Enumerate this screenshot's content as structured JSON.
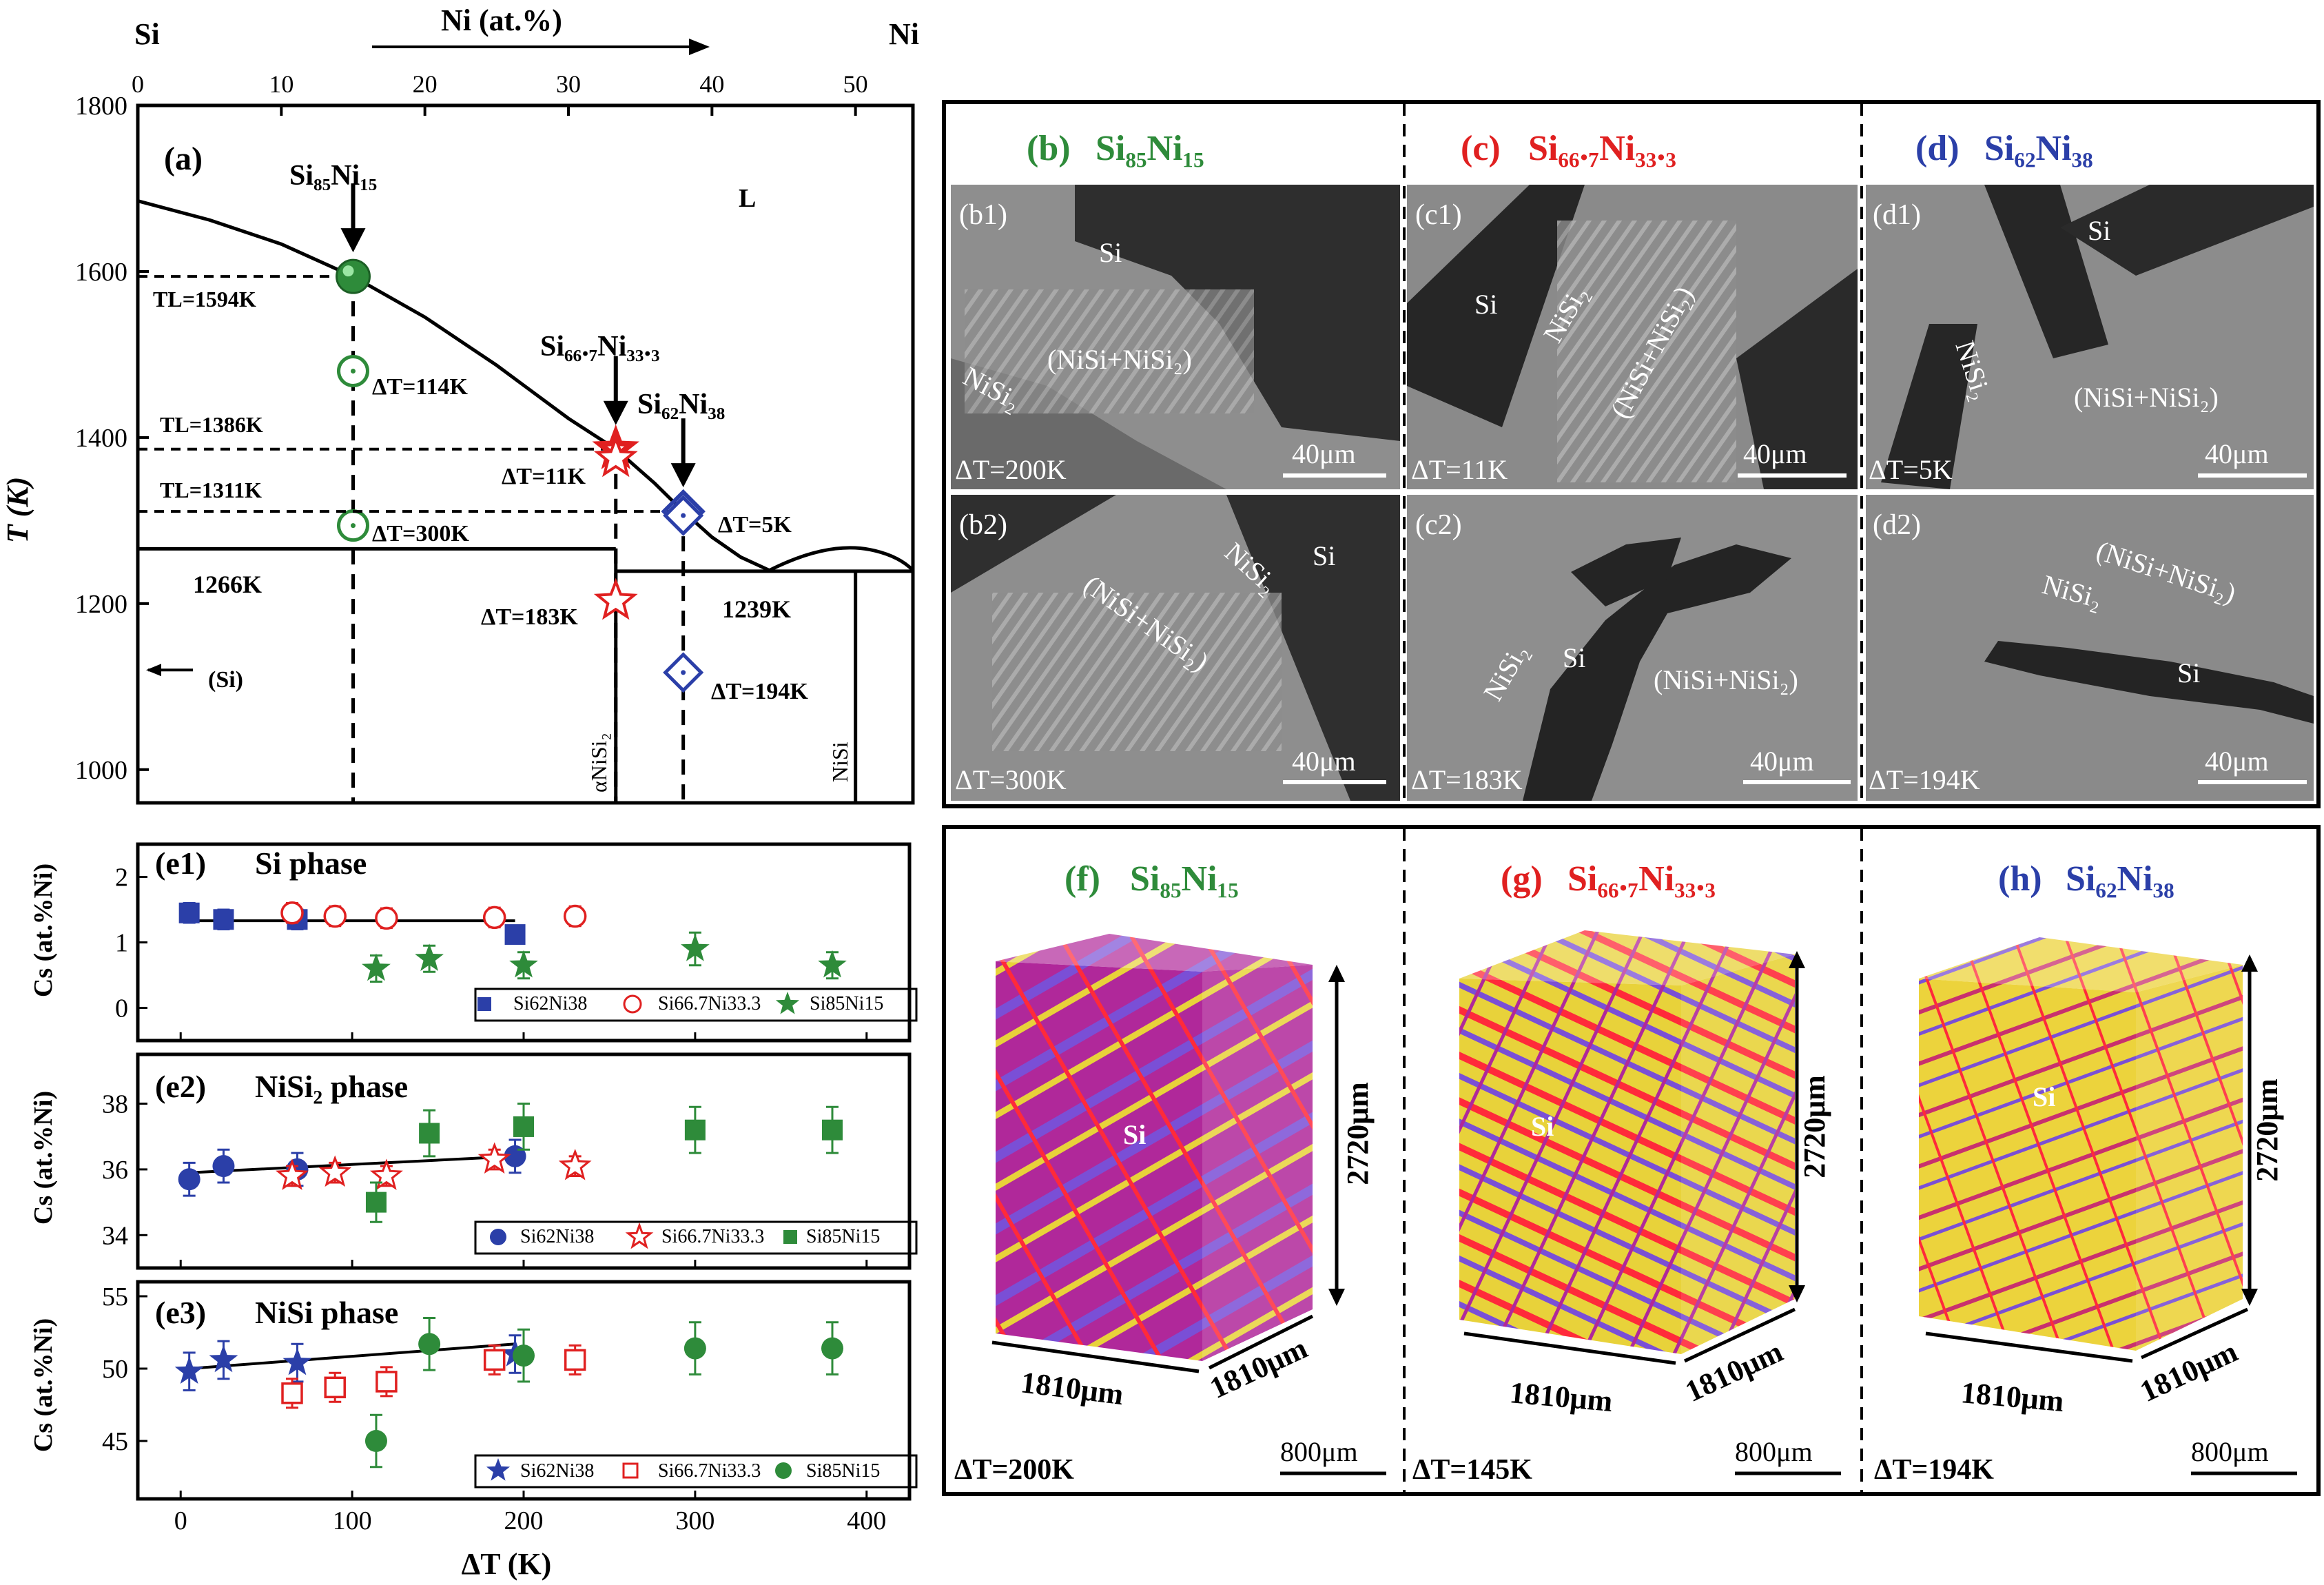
{
  "colors": {
    "green": "#2e8b3a",
    "red": "#e02020",
    "blue": "#2b3fa8",
    "black": "#000000"
  },
  "chart_data": [
    {
      "panel_label": "(a)",
      "type": "line",
      "top_axis": {
        "left_label": "Si",
        "right_label": "Ni",
        "label": "Ni (at.%)",
        "ticks": [
          0,
          10,
          20,
          30,
          40,
          50
        ]
      },
      "ylabel": "T (K)",
      "yticks": [
        1000,
        1200,
        1400,
        1600,
        1800
      ],
      "xlim": [
        0,
        54
      ],
      "ylim": [
        960,
        1800
      ],
      "liquidus": {
        "x": [
          0,
          5,
          10,
          15,
          20,
          25,
          30,
          33.3,
          36,
          38,
          40,
          42,
          44
        ],
        "y": [
          1685,
          1662,
          1633,
          1594,
          1545,
          1487,
          1423,
          1386,
          1345,
          1311,
          1280,
          1256,
          1240
        ]
      },
      "region_label": "L",
      "eutectic_lines": [
        {
          "label": "1266K",
          "y": 1266,
          "x_range": [
            0,
            33.3
          ]
        },
        {
          "label": "1239K",
          "y": 1239,
          "x_range": [
            33.3,
            54
          ]
        }
      ],
      "phase_labels": [
        "αNiSi₂",
        "NiSi"
      ],
      "si_arrow_label": "(Si)",
      "compositions": [
        {
          "name": "Si₈₅Ni₁₅",
          "color": "#2e8b3a",
          "x": 15,
          "TL": 1594,
          "TL_label": "TL=1594K",
          "undercoolings": [
            {
              "label": "ΔT=114K",
              "T": 1480
            },
            {
              "label": "ΔT=300K",
              "T": 1294
            }
          ]
        },
        {
          "name": "Si₆₆.₇Ni₃₃.₃",
          "color": "#e02020",
          "x": 33.3,
          "TL": 1386,
          "TL_label": "TL=1386K",
          "undercoolings": [
            {
              "label": "ΔT=11K",
              "T": 1375
            },
            {
              "label": "ΔT=183K",
              "T": 1203
            }
          ]
        },
        {
          "name": "Si₆₂Ni₃₈",
          "color": "#2b3fa8",
          "x": 38,
          "TL": 1311,
          "TL_label": "TL=1311K",
          "undercoolings": [
            {
              "label": "ΔT=5K",
              "T": 1306
            },
            {
              "label": "ΔT=194K",
              "T": 1117
            }
          ]
        }
      ]
    },
    {
      "panel_label": "(e1)",
      "title": "Si phase",
      "type": "scatter",
      "ylabel": "Cs (at.%Ni)",
      "ylim": [
        -0.5,
        2.5
      ],
      "yticks": [
        0,
        1,
        2
      ],
      "xlim": [
        -25,
        425
      ],
      "fit": {
        "x": [
          5,
          195
        ],
        "y": [
          1.33,
          1.33
        ],
        "color": "#000000"
      },
      "series": [
        {
          "name": "Si62Ni38",
          "marker": "square-filled",
          "color": "#2b3fa8",
          "x": [
            5,
            25,
            68,
            195
          ],
          "y": [
            1.45,
            1.35,
            1.35,
            1.12
          ],
          "err": [
            0.15,
            0.15,
            0.15,
            0.1
          ]
        },
        {
          "name": "Si66.7Ni33.3",
          "marker": "circle-open",
          "color": "#e02020",
          "x": [
            65,
            90,
            120,
            183,
            230
          ],
          "y": [
            1.45,
            1.4,
            1.37,
            1.38,
            1.4
          ],
          "err": [
            0.15,
            0.15,
            0.15,
            0.15,
            0.15
          ]
        },
        {
          "name": "Si85Ni15",
          "marker": "star-filled",
          "color": "#2e8b3a",
          "x": [
            114,
            145,
            200,
            300,
            380
          ],
          "y": [
            0.6,
            0.75,
            0.65,
            0.9,
            0.65
          ],
          "err": [
            0.2,
            0.2,
            0.2,
            0.25,
            0.2
          ]
        }
      ]
    },
    {
      "panel_label": "(e2)",
      "title": "NiSi₂ phase",
      "type": "scatter",
      "ylabel": "Cs (at.%Ni)",
      "ylim": [
        33,
        39.5
      ],
      "yticks": [
        34,
        36,
        38
      ],
      "xlim": [
        -25,
        425
      ],
      "fit": {
        "x": [
          5,
          195
        ],
        "y": [
          35.9,
          36.4
        ],
        "color": "#000000"
      },
      "series": [
        {
          "name": "Si62Ni38",
          "marker": "circle-filled",
          "color": "#2b3fa8",
          "x": [
            5,
            25,
            68,
            195
          ],
          "y": [
            35.7,
            36.1,
            36.0,
            36.4
          ],
          "err": [
            0.5,
            0.5,
            0.5,
            0.5
          ]
        },
        {
          "name": "Si66.7Ni33.3",
          "marker": "star-open",
          "color": "#e02020",
          "x": [
            65,
            90,
            120,
            183,
            230
          ],
          "y": [
            35.8,
            35.9,
            35.8,
            36.3,
            36.1
          ],
          "err": [
            0.3,
            0.3,
            0.3,
            0.3,
            0.3
          ]
        },
        {
          "name": "Si85Ni15",
          "marker": "square-filled",
          "color": "#2e8b3a",
          "x": [
            114,
            145,
            200,
            300,
            380
          ],
          "y": [
            35.0,
            37.1,
            37.3,
            37.2,
            37.2
          ],
          "err": [
            0.6,
            0.7,
            0.7,
            0.7,
            0.7
          ]
        }
      ]
    },
    {
      "panel_label": "(e3)",
      "title": "NiSi phase",
      "type": "scatter",
      "xlabel": "ΔT (K)",
      "xticks": [
        0,
        100,
        200,
        300,
        400
      ],
      "ylabel": "Cs (at.%Ni)",
      "ylim": [
        41,
        56
      ],
      "yticks": [
        45,
        50,
        55
      ],
      "xlim": [
        -25,
        425
      ],
      "fit": {
        "x": [
          5,
          195
        ],
        "y": [
          50.0,
          51.7
        ],
        "color": "#000000"
      },
      "series": [
        {
          "name": "Si62Ni38",
          "marker": "star-filled",
          "color": "#2b3fa8",
          "x": [
            5,
            25,
            68,
            195
          ],
          "y": [
            49.8,
            50.6,
            50.4,
            51.0
          ],
          "err": [
            1.3,
            1.3,
            1.3,
            1.3
          ]
        },
        {
          "name": "Si66.7Ni33.3",
          "marker": "square-open",
          "color": "#e02020",
          "x": [
            65,
            90,
            120,
            183,
            230
          ],
          "y": [
            48.3,
            48.7,
            49.1,
            50.6,
            50.6
          ],
          "err": [
            1.0,
            1.0,
            1.0,
            1.0,
            1.0
          ]
        },
        {
          "name": "Si85Ni15",
          "marker": "circle-filled",
          "color": "#2e8b3a",
          "x": [
            114,
            145,
            200,
            300,
            380
          ],
          "y": [
            45.0,
            51.7,
            50.9,
            51.4,
            51.4
          ],
          "err": [
            1.8,
            1.8,
            1.8,
            1.8,
            1.8
          ]
        }
      ]
    }
  ],
  "micrographs": {
    "headers": [
      {
        "label": "(b)",
        "alloy": "Si₈₅Ni₁₅",
        "color": "#2e8b3a"
      },
      {
        "label": "(c)",
        "alloy": "Si₆₆.₇Ni₃₃.₃",
        "color": "#e02020"
      },
      {
        "label": "(d)",
        "alloy": "Si₆₂Ni₃₈",
        "color": "#2b3fa8"
      }
    ],
    "tiles": [
      {
        "id": "(b1)",
        "dt": "ΔT=200K",
        "scale": "40μm",
        "labels": [
          "Si",
          "(NiSi+NiSi₂)",
          "NiSi₂"
        ]
      },
      {
        "id": "(c1)",
        "dt": "ΔT=11K",
        "scale": "40μm",
        "labels": [
          "Si",
          "NiSi₂",
          "(NiSi+NiSi₂)"
        ]
      },
      {
        "id": "(d1)",
        "dt": "ΔT=5K",
        "scale": "40μm",
        "labels": [
          "Si",
          "NiSi₂",
          "(NiSi+NiSi₂)"
        ]
      },
      {
        "id": "(b2)",
        "dt": "ΔT=300K",
        "scale": "40μm",
        "labels": [
          "Si",
          "NiSi₂",
          "(NiSi+NiSi₂)"
        ]
      },
      {
        "id": "(c2)",
        "dt": "ΔT=183K",
        "scale": "40μm",
        "labels": [
          "Si",
          "NiSi₂",
          "(NiSi+NiSi₂)"
        ]
      },
      {
        "id": "(d2)",
        "dt": "ΔT=194K",
        "scale": "40μm",
        "labels": [
          "Si",
          "NiSi₂",
          "(NiSi+NiSi₂)"
        ]
      }
    ]
  },
  "tomography": [
    {
      "label": "(f)",
      "alloy": "Si₈₅Ni₁₅",
      "color": "#2e8b3a",
      "dt": "ΔT=200K",
      "height": "2720μm",
      "width": "1810μm",
      "depth": "1810μm",
      "scale": "800μm",
      "phase": "Si"
    },
    {
      "label": "(g)",
      "alloy": "Si₆₆.₇Ni₃₃.₃",
      "color": "#e02020",
      "dt": "ΔT=145K",
      "height": "2720μm",
      "width": "1810μm",
      "depth": "1810μm",
      "scale": "800μm",
      "phase": "Si"
    },
    {
      "label": "(h)",
      "alloy": "Si₆₂Ni₃₈",
      "color": "#2b3fa8",
      "dt": "ΔT=194K",
      "height": "2720μm",
      "width": "1810μm",
      "depth": "1810μm",
      "scale": "800μm",
      "phase": "Si"
    }
  ]
}
